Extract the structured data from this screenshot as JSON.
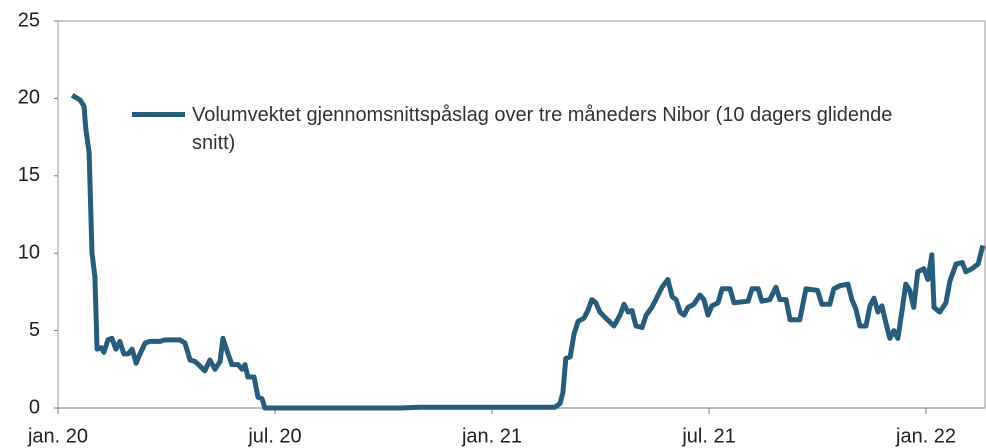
{
  "chart_data": {
    "type": "line",
    "series": [
      {
        "name": "Volumvektet gjennomsnittspåslag over tre måneders Nibor (10 dagers glidende snitt)",
        "color": "#285c7b",
        "x": [
          0.39,
          0.61,
          0.72,
          0.77,
          0.86,
          0.94,
          1.02,
          1.08,
          1.19,
          1.27,
          1.38,
          1.49,
          1.6,
          1.71,
          1.82,
          1.94,
          2.05,
          2.16,
          2.27,
          2.41,
          2.54,
          2.82,
          2.96,
          3.37,
          3.51,
          3.65,
          3.79,
          3.93,
          4.06,
          4.2,
          4.34,
          4.48,
          4.56,
          4.7,
          4.81,
          4.98,
          5.09,
          5.17,
          5.25,
          5.42,
          5.53,
          5.64,
          5.72,
          6.69,
          9.46,
          10.0,
          12.2,
          13.74,
          13.88,
          13.96,
          14.04,
          14.16,
          14.27,
          14.38,
          14.54,
          14.65,
          14.76,
          14.87,
          14.98,
          15.15,
          15.37,
          15.54,
          15.65,
          15.76,
          15.87,
          15.98,
          16.15,
          16.26,
          16.42,
          16.53,
          16.7,
          16.86,
          16.98,
          17.09,
          17.2,
          17.31,
          17.42,
          17.58,
          17.75,
          17.86,
          17.97,
          18.08,
          18.25,
          18.36,
          18.58,
          18.69,
          19.08,
          19.19,
          19.36,
          19.46,
          19.68,
          19.85,
          19.96,
          20.13,
          20.24,
          20.51,
          20.68,
          21.0,
          21.12,
          21.34,
          21.45,
          21.62,
          21.84,
          21.95,
          22.06,
          22.17,
          22.34,
          22.45,
          22.56,
          22.67,
          22.78,
          22.89,
          23.0,
          23.11,
          23.22,
          23.33,
          23.44,
          23.55,
          23.66,
          23.77,
          23.94,
          24.05,
          24.16,
          24.22,
          24.38,
          24.55,
          24.66,
          24.83,
          25.0,
          25.1,
          25.27,
          25.44,
          25.57
        ],
        "values": [
          20.2,
          19.9,
          19.5,
          18,
          16.5,
          10,
          8.5,
          3.8,
          3.9,
          3.6,
          4.4,
          4.5,
          3.8,
          4.3,
          3.5,
          3.5,
          3.8,
          2.9,
          3.5,
          4.2,
          4.3,
          4.3,
          4.4,
          4.4,
          4.2,
          3.1,
          3.0,
          2.7,
          2.4,
          3.1,
          2.5,
          3.0,
          4.5,
          3.5,
          2.8,
          2.8,
          2.5,
          2.8,
          2.0,
          2.0,
          0.7,
          0.6,
          0,
          0,
          0,
          0.05,
          0.05,
          0.05,
          0.3,
          1,
          3.2,
          3.3,
          4.8,
          5.6,
          5.8,
          6.3,
          7,
          6.8,
          6.2,
          5.8,
          5.3,
          6,
          6.7,
          6.2,
          6.3,
          5.3,
          5.2,
          6,
          6.5,
          7,
          7.8,
          8.3,
          7.2,
          7,
          6.2,
          6.0,
          6.5,
          6.7,
          7.3,
          7,
          6.0,
          6.6,
          6.8,
          7.7,
          7.7,
          6.8,
          6.9,
          7.7,
          7.7,
          6.9,
          7.0,
          7.8,
          7.0,
          7.0,
          5.7,
          5.7,
          7.7,
          7.6,
          6.7,
          6.7,
          7.7,
          7.9,
          8.0,
          7.0,
          6.4,
          5.3,
          5.3,
          6.6,
          7.1,
          6.2,
          6.6,
          5.5,
          4.5,
          5.0,
          4.5,
          6.2,
          8,
          7.6,
          6.5,
          8.8,
          9,
          8.3,
          9.9,
          6.5,
          6.2,
          6.8,
          8.2,
          9.3,
          9.4,
          8.8,
          9.0,
          9.3,
          10.5
        ]
      }
    ],
    "xlim": [
      0,
      25.63
    ],
    "xticks": [
      {
        "value": 0,
        "label": "jan. 20"
      },
      {
        "value": 6,
        "label": "jul. 20"
      },
      {
        "value": 12,
        "label": "jan. 21"
      },
      {
        "value": 18,
        "label": "jul. 21"
      },
      {
        "value": 24,
        "label": "jan. 22"
      }
    ],
    "ylim": [
      0,
      25
    ],
    "yticks": [
      0,
      5,
      10,
      15,
      20,
      25
    ]
  }
}
